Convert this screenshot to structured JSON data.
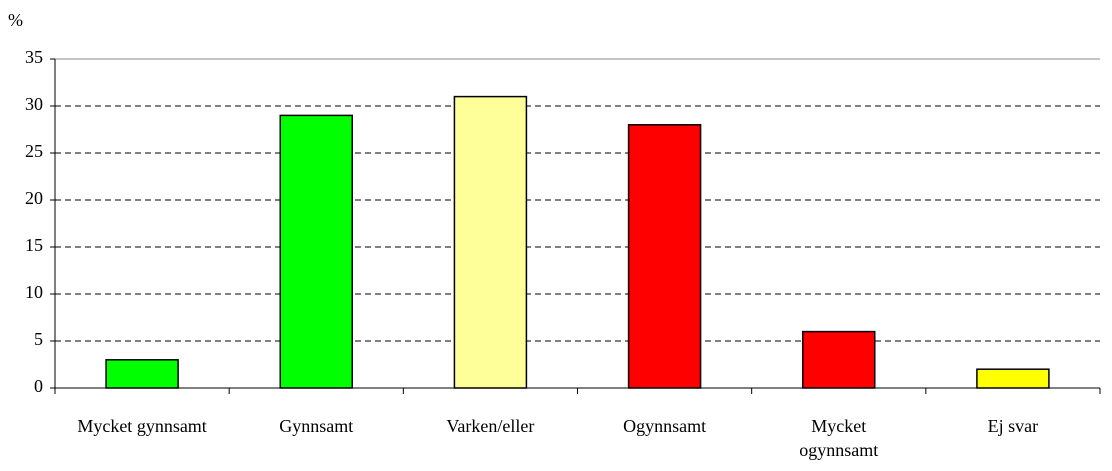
{
  "chart_data": {
    "type": "bar",
    "y_label": "%",
    "categories": [
      "Mycket gynnsamt",
      "Gynnsamt",
      "Varken/eller",
      "Ogynnsamt",
      "Mycket ogynnsamt",
      "Ej svar"
    ],
    "values": [
      3,
      29,
      31,
      28,
      6,
      2
    ],
    "colors": [
      "#00ff00",
      "#00ff00",
      "#ffff99",
      "#ff0000",
      "#ff0000",
      "#ffff00"
    ],
    "ylim": [
      0,
      35
    ],
    "yticks": [
      0,
      5,
      10,
      15,
      20,
      25,
      30,
      35
    ],
    "grid": true
  }
}
